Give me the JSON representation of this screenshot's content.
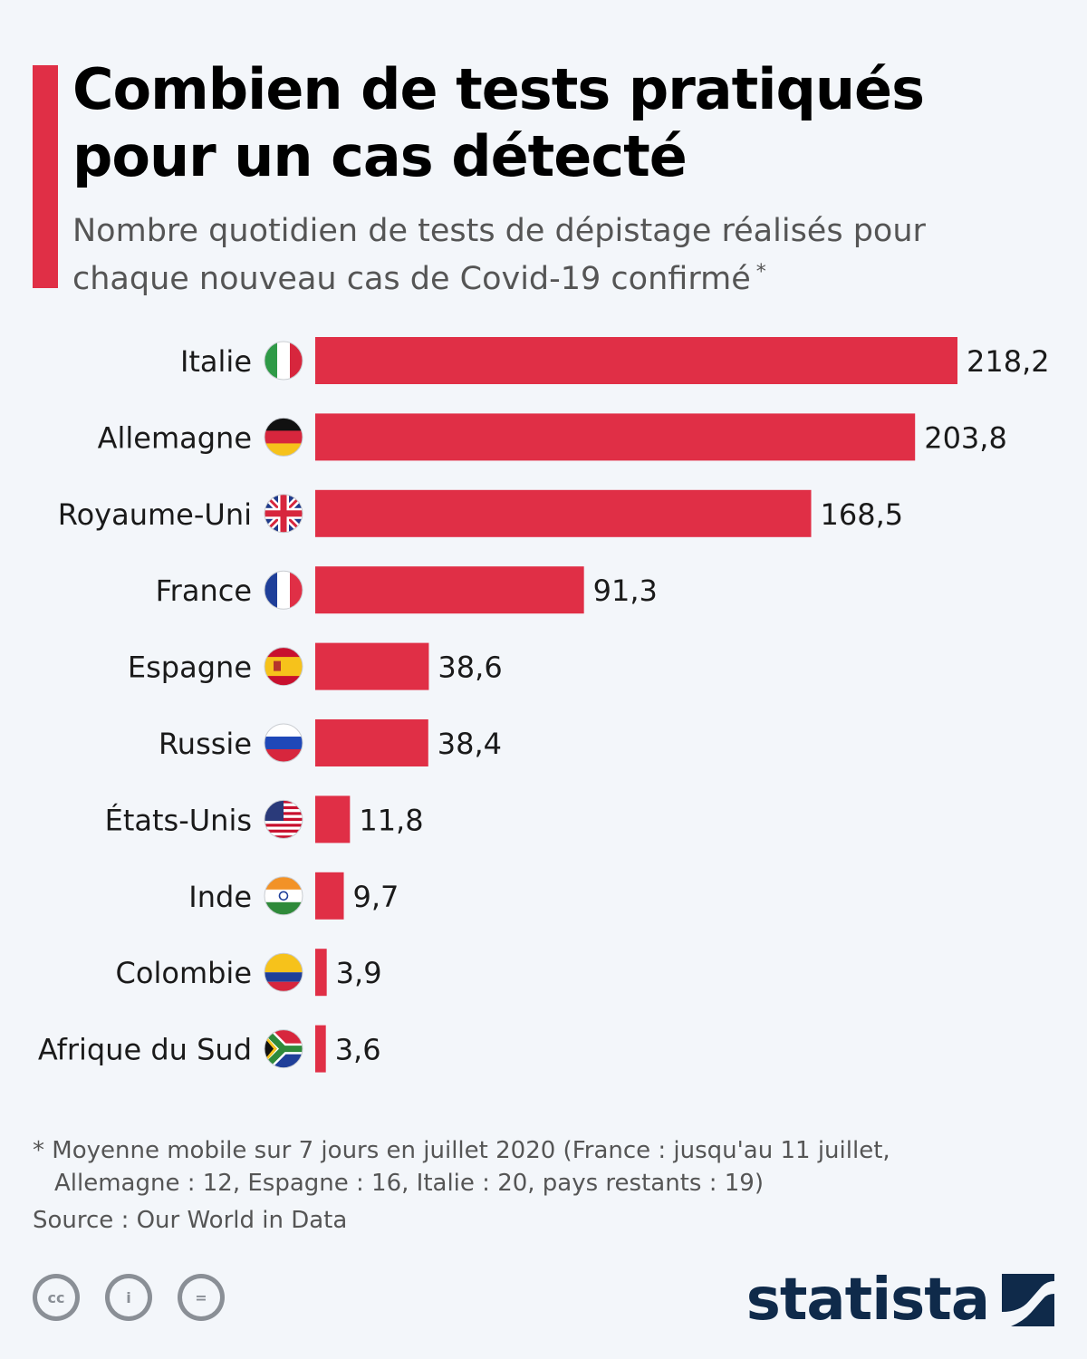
{
  "header": {
    "title": "Combien de tests pratiqués pour un cas détecté",
    "subtitle": "Nombre quotidien de tests de dépistage réalisés pour chaque nouveau cas de Covid-19 confirmé",
    "subtitle_mark": "*"
  },
  "chart_data": {
    "type": "bar",
    "orientation": "horizontal",
    "categories": [
      "Italie",
      "Allemagne",
      "Royaume-Uni",
      "France",
      "Espagne",
      "Russie",
      "États-Unis",
      "Inde",
      "Colombie",
      "Afrique du Sud"
    ],
    "values": [
      218.2,
      203.8,
      168.5,
      91.3,
      38.6,
      38.4,
      11.8,
      9.7,
      3.9,
      3.6
    ],
    "value_labels": [
      "218,2",
      "203,8",
      "168,5",
      "91,3",
      "38,6",
      "38,4",
      "11,8",
      "9,7",
      "3,9",
      "3,6"
    ],
    "flags": [
      "flag-italy-icon",
      "flag-germany-icon",
      "flag-uk-icon",
      "flag-france-icon",
      "flag-spain-icon",
      "flag-russia-icon",
      "flag-usa-icon",
      "flag-india-icon",
      "flag-colombia-icon",
      "flag-south-africa-icon"
    ],
    "bar_color": "#e02f46",
    "grid": false,
    "legend": "none"
  },
  "footnote": {
    "line1": "* Moyenne mobile sur 7 jours en juillet 2020 (France : jusqu'au 11 juillet,",
    "line2": "Allemagne : 12, Espagne : 16, Italie : 20, pays restants : 19)"
  },
  "source": "Source : Our World in Data",
  "license_icons": [
    "cc-icon",
    "attribution-icon",
    "no-derivatives-icon"
  ],
  "license_labels": [
    "cc",
    "i",
    "="
  ],
  "brand": "statista",
  "colors": {
    "accent": "#e02f46",
    "brand": "#0f2a4a",
    "muted": "#555555"
  }
}
